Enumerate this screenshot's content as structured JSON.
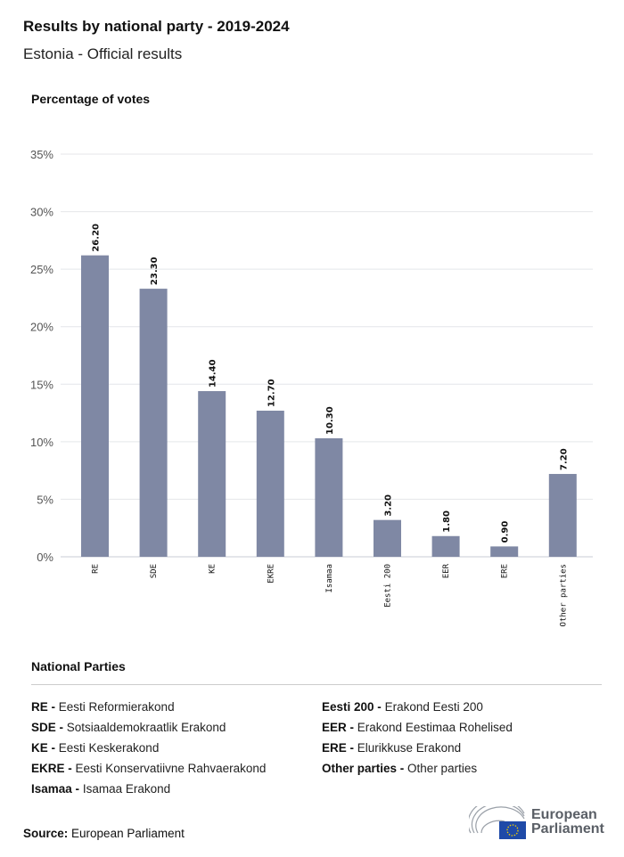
{
  "title": "Results by national party - 2019-2024",
  "subtitle": "Estonia - Official results",
  "chart_data": {
    "type": "bar",
    "ylabel": "Percentage of votes",
    "categories": [
      "RE",
      "SDE",
      "KE",
      "EKRE",
      "Isamaa",
      "Eesti 200",
      "EER",
      "ERE",
      "Other parties"
    ],
    "values": [
      26.2,
      23.3,
      14.4,
      12.7,
      10.3,
      3.2,
      1.8,
      0.9,
      7.2
    ],
    "data_labels": [
      "26.20",
      "23.30",
      "14.40",
      "12.70",
      "10.30",
      "3.20",
      "1.80",
      "0.90",
      "7.20"
    ],
    "ylim": [
      0,
      35
    ],
    "yticks": [
      "0%",
      "5%",
      "10%",
      "15%",
      "20%",
      "25%",
      "30%",
      "35%"
    ],
    "grid": true,
    "bar_color": "#7f88a4"
  },
  "legend": {
    "title": "National Parties",
    "items": [
      {
        "abbr": "RE -",
        "name": "Eesti Reformierakond"
      },
      {
        "abbr": "SDE -",
        "name": "Sotsiaaldemokraatlik Erakond"
      },
      {
        "abbr": "KE -",
        "name": "Eesti Keskerakond"
      },
      {
        "abbr": "EKRE -",
        "name": "Eesti Konservatiivne Rahvaerakond"
      },
      {
        "abbr": "Isamaa -",
        "name": "Isamaa Erakond"
      },
      {
        "abbr": "Eesti 200 -",
        "name": "Erakond Eesti 200"
      },
      {
        "abbr": "EER -",
        "name": "Erakond Eestimaa Rohelised"
      },
      {
        "abbr": "ERE -",
        "name": "Elurikkuse Erakond"
      },
      {
        "abbr": "Other parties -",
        "name": "Other parties"
      }
    ]
  },
  "source": {
    "label": "Source:",
    "value": "European Parliament"
  },
  "logo": {
    "line1": "European",
    "line2": "Parliament"
  }
}
